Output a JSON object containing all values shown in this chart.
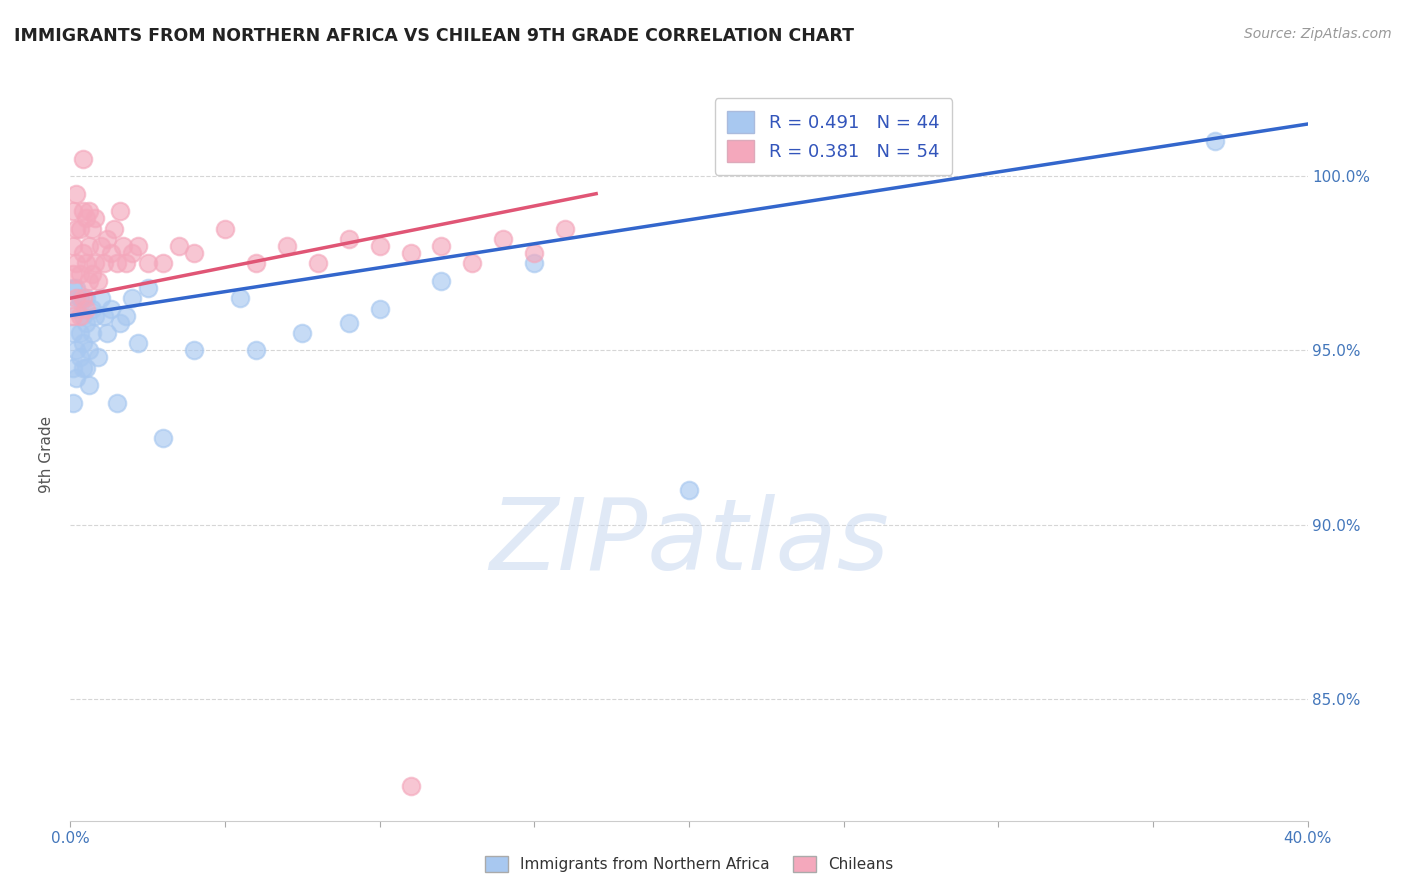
{
  "title": "IMMIGRANTS FROM NORTHERN AFRICA VS CHILEAN 9TH GRADE CORRELATION CHART",
  "source": "Source: ZipAtlas.com",
  "ylabel": "9th Grade",
  "xlim": [
    0.0,
    0.4
  ],
  "ylim": [
    81.5,
    102.5
  ],
  "blue_R": 0.491,
  "blue_N": 44,
  "pink_R": 0.381,
  "pink_N": 54,
  "blue_color": "#A8C8F0",
  "pink_color": "#F4A8BC",
  "blue_line_color": "#3366CC",
  "pink_line_color": "#E05575",
  "legend_label_blue": "Immigrants from Northern Africa",
  "legend_label_pink": "Chileans",
  "blue_x": [
    0.001,
    0.001,
    0.001,
    0.001,
    0.002,
    0.002,
    0.002,
    0.002,
    0.003,
    0.003,
    0.003,
    0.004,
    0.004,
    0.004,
    0.005,
    0.005,
    0.005,
    0.006,
    0.006,
    0.007,
    0.007,
    0.008,
    0.009,
    0.01,
    0.011,
    0.012,
    0.013,
    0.015,
    0.016,
    0.018,
    0.02,
    0.022,
    0.025,
    0.03,
    0.04,
    0.055,
    0.06,
    0.075,
    0.09,
    0.1,
    0.12,
    0.15,
    0.2,
    0.37
  ],
  "blue_y": [
    96.8,
    95.5,
    94.5,
    93.5,
    96.2,
    95.0,
    94.2,
    96.8,
    95.5,
    94.8,
    96.5,
    95.2,
    94.5,
    96.0,
    95.8,
    94.5,
    96.5,
    95.0,
    94.0,
    96.2,
    95.5,
    96.0,
    94.8,
    96.5,
    96.0,
    95.5,
    96.2,
    93.5,
    95.8,
    96.0,
    96.5,
    95.2,
    96.8,
    92.5,
    95.0,
    96.5,
    95.0,
    95.5,
    95.8,
    96.2,
    97.0,
    97.5,
    91.0,
    101.0
  ],
  "pink_x": [
    0.001,
    0.001,
    0.001,
    0.001,
    0.002,
    0.002,
    0.002,
    0.002,
    0.003,
    0.003,
    0.003,
    0.004,
    0.004,
    0.004,
    0.004,
    0.005,
    0.005,
    0.005,
    0.006,
    0.006,
    0.006,
    0.007,
    0.007,
    0.008,
    0.008,
    0.009,
    0.01,
    0.011,
    0.012,
    0.013,
    0.014,
    0.015,
    0.016,
    0.017,
    0.018,
    0.02,
    0.022,
    0.025,
    0.03,
    0.035,
    0.04,
    0.05,
    0.06,
    0.07,
    0.08,
    0.09,
    0.1,
    0.11,
    0.12,
    0.13,
    0.14,
    0.15,
    0.16,
    0.11
  ],
  "pink_y": [
    96.0,
    97.2,
    98.0,
    99.0,
    96.5,
    97.5,
    98.5,
    99.5,
    96.0,
    97.2,
    98.5,
    96.5,
    97.8,
    99.0,
    100.5,
    96.2,
    97.5,
    98.8,
    97.0,
    98.0,
    99.0,
    97.2,
    98.5,
    97.5,
    98.8,
    97.0,
    98.0,
    97.5,
    98.2,
    97.8,
    98.5,
    97.5,
    99.0,
    98.0,
    97.5,
    97.8,
    98.0,
    97.5,
    97.5,
    98.0,
    97.8,
    98.5,
    97.5,
    98.0,
    97.5,
    98.2,
    98.0,
    97.8,
    98.0,
    97.5,
    98.2,
    97.8,
    98.5,
    82.5
  ],
  "blue_trend_x": [
    0.0,
    0.4
  ],
  "blue_trend_y": [
    96.0,
    101.5
  ],
  "pink_trend_x": [
    0.0,
    0.17
  ],
  "pink_trend_y": [
    96.5,
    99.5
  ],
  "yticks": [
    85,
    90,
    95,
    100
  ],
  "ytick_labels": [
    "85.0%",
    "90.0%",
    "95.0%",
    "100.0%"
  ],
  "xticks": [
    0.0,
    0.05,
    0.1,
    0.15,
    0.2,
    0.25,
    0.3,
    0.35,
    0.4
  ],
  "xtick_labels": [
    "0.0%",
    "",
    "",
    "",
    "",
    "",
    "",
    "",
    "40.0%"
  ],
  "tick_color": "#4477BB",
  "watermark_text": "ZIPatlas",
  "watermark_color": "#C8D8F0",
  "background_color": "#FFFFFF"
}
